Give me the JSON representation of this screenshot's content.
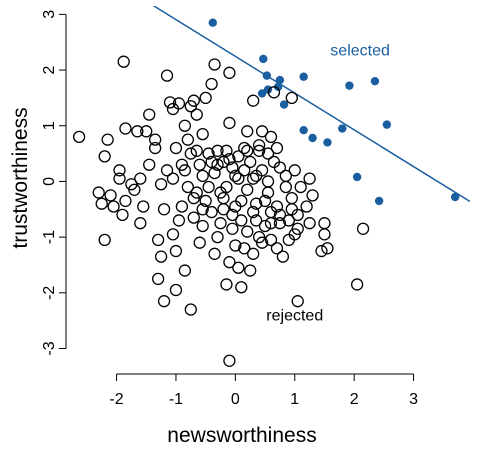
{
  "chart_data": {
    "type": "scatter",
    "title": "",
    "xlabel": "newsworthiness",
    "ylabel": "trustworthiness",
    "xlim": [
      -2.75,
      3.95
    ],
    "ylim": [
      -3.35,
      3.15
    ],
    "xticks": [
      -2,
      -1,
      0,
      1,
      2,
      3
    ],
    "yticks": [
      -3,
      -2,
      -1,
      0,
      1,
      2,
      3
    ],
    "grid": false,
    "line": {
      "x1": -2.75,
      "y1": 4.06,
      "x2": 3.95,
      "y2": -0.36,
      "color": "#1a5fa0"
    },
    "annotations": [
      {
        "text": "selected",
        "x": 2.1,
        "y": 2.26,
        "color": "#1a5fa0"
      },
      {
        "text": "rejected",
        "x": 1.0,
        "y": -2.5,
        "color": "#000000"
      }
    ],
    "series": [
      {
        "name": "selected",
        "marker": "filled",
        "color": "#1a5fa0",
        "points": [
          [
            -0.38,
            2.85
          ],
          [
            0.47,
            2.2
          ],
          [
            0.53,
            1.9
          ],
          [
            0.75,
            1.82
          ],
          [
            1.15,
            1.88
          ],
          [
            0.45,
            1.58
          ],
          [
            0.55,
            1.65
          ],
          [
            0.72,
            1.7
          ],
          [
            0.82,
            1.38
          ],
          [
            1.92,
            1.72
          ],
          [
            2.35,
            1.8
          ],
          [
            1.15,
            0.92
          ],
          [
            1.3,
            0.78
          ],
          [
            1.55,
            0.7
          ],
          [
            1.8,
            0.95
          ],
          [
            2.55,
            1.02
          ],
          [
            2.05,
            0.08
          ],
          [
            2.42,
            -0.35
          ],
          [
            3.7,
            -0.28
          ]
        ]
      },
      {
        "name": "rejected",
        "marker": "open",
        "color": "#000000",
        "points": [
          [
            -2.63,
            0.8
          ],
          [
            -1.88,
            2.15
          ],
          [
            -1.45,
            1.2
          ],
          [
            -1.15,
            1.9
          ],
          [
            -0.95,
            1.4
          ],
          [
            -0.7,
            1.45
          ],
          [
            -0.35,
            2.1
          ],
          [
            -0.1,
            1.95
          ],
          [
            -0.4,
            1.75
          ],
          [
            -0.65,
            1.2
          ],
          [
            -0.85,
            1.0
          ],
          [
            -1.05,
            1.3
          ],
          [
            -1.35,
            0.75
          ],
          [
            -1.65,
            0.9
          ],
          [
            -1.85,
            0.95
          ],
          [
            -2.15,
            0.75
          ],
          [
            -2.2,
            0.45
          ],
          [
            -1.95,
            0.2
          ],
          [
            -2.3,
            -0.2
          ],
          [
            -2.25,
            -0.4
          ],
          [
            -2.1,
            -0.25
          ],
          [
            -1.85,
            -0.35
          ],
          [
            -1.7,
            -0.15
          ],
          [
            -1.55,
            -0.45
          ],
          [
            -1.9,
            -0.6
          ],
          [
            -2.2,
            -1.05
          ],
          [
            -1.3,
            -1.05
          ],
          [
            -1.25,
            -1.35
          ],
          [
            -1.05,
            -0.95
          ],
          [
            -1.0,
            -1.25
          ],
          [
            -1.3,
            -1.75
          ],
          [
            -1.2,
            -2.15
          ],
          [
            -1.0,
            -1.95
          ],
          [
            -0.85,
            -1.6
          ],
          [
            -0.75,
            -2.3
          ],
          [
            -0.9,
            -0.45
          ],
          [
            -0.8,
            -0.1
          ],
          [
            -0.6,
            0.3
          ],
          [
            -0.45,
            0.5
          ],
          [
            -0.3,
            0.55
          ],
          [
            -0.2,
            0.35
          ],
          [
            -0.1,
            0.4
          ],
          [
            0.05,
            0.45
          ],
          [
            0.15,
            0.6
          ],
          [
            0.0,
            0.1
          ],
          [
            -0.25,
            -0.2
          ],
          [
            -0.5,
            -0.35
          ],
          [
            -0.7,
            -0.65
          ],
          [
            -0.55,
            -0.8
          ],
          [
            -0.4,
            -0.55
          ],
          [
            -0.2,
            -0.5
          ],
          [
            -0.05,
            -0.6
          ],
          [
            0.1,
            -0.35
          ],
          [
            0.2,
            -0.15
          ],
          [
            0.3,
            0.05
          ],
          [
            0.45,
            0.2
          ],
          [
            0.55,
            0.5
          ],
          [
            0.7,
            0.6
          ],
          [
            0.75,
            0.25
          ],
          [
            0.85,
            -0.1
          ],
          [
            0.95,
            -0.3
          ],
          [
            1.05,
            -0.6
          ],
          [
            1.2,
            -0.45
          ],
          [
            1.05,
            -0.85
          ],
          [
            0.9,
            -0.7
          ],
          [
            0.75,
            -0.75
          ],
          [
            0.6,
            -0.55
          ],
          [
            0.5,
            -0.8
          ],
          [
            0.35,
            -0.7
          ],
          [
            0.2,
            -0.9
          ],
          [
            0.0,
            -1.15
          ],
          [
            -0.1,
            -1.45
          ],
          [
            0.05,
            -1.55
          ],
          [
            -0.15,
            -1.85
          ],
          [
            0.1,
            -1.9
          ],
          [
            0.3,
            -1.3
          ],
          [
            0.45,
            -1.1
          ],
          [
            0.7,
            -1.2
          ],
          [
            0.8,
            -1.35
          ],
          [
            1.0,
            -0.95
          ],
          [
            1.5,
            -0.75
          ],
          [
            1.5,
            -0.95
          ],
          [
            1.45,
            -1.25
          ],
          [
            1.55,
            -1.2
          ],
          [
            2.15,
            -0.85
          ],
          [
            2.05,
            -1.85
          ],
          [
            1.05,
            -2.15
          ],
          [
            -0.1,
            -3.22
          ],
          [
            0.3,
            1.45
          ],
          [
            0.65,
            1.6
          ],
          [
            0.95,
            1.5
          ],
          [
            -0.5,
            1.5
          ],
          [
            -0.75,
            1.35
          ],
          [
            -1.1,
            1.42
          ],
          [
            -0.55,
            0.85
          ],
          [
            -0.1,
            1.05
          ],
          [
            0.2,
            0.9
          ],
          [
            0.45,
            0.9
          ],
          [
            0.6,
            0.8
          ],
          [
            0.4,
            0.55
          ],
          [
            0.25,
            0.35
          ],
          [
            -0.15,
            0.55
          ],
          [
            -0.3,
            0.3
          ],
          [
            -0.55,
            0.1
          ],
          [
            -0.75,
            0.5
          ],
          [
            -1.0,
            0.6
          ],
          [
            -1.15,
            0.2
          ],
          [
            -1.25,
            -0.05
          ],
          [
            -1.45,
            0.3
          ],
          [
            -1.6,
            0.05
          ],
          [
            -1.75,
            -0.05
          ],
          [
            -1.95,
            0.05
          ],
          [
            -2.05,
            -0.45
          ],
          [
            -1.6,
            -0.75
          ],
          [
            -1.2,
            -0.5
          ],
          [
            -0.9,
            0.3
          ],
          [
            -0.65,
            -0.2
          ],
          [
            -0.35,
            0.15
          ],
          [
            -0.15,
            -0.1
          ],
          [
            0.05,
            0.05
          ],
          [
            0.35,
            -0.4
          ],
          [
            0.55,
            -0.2
          ],
          [
            0.85,
            0.1
          ],
          [
            1.0,
            0.2
          ],
          [
            1.25,
            0.05
          ],
          [
            1.3,
            -0.25
          ],
          [
            0.7,
            -0.45
          ],
          [
            0.4,
            -1.0
          ],
          [
            0.15,
            -1.2
          ],
          [
            -0.05,
            -0.85
          ],
          [
            -0.3,
            -1.0
          ],
          [
            -0.6,
            -1.1
          ],
          [
            -0.35,
            -1.3
          ],
          [
            0.25,
            -1.6
          ],
          [
            0.6,
            -1.05
          ],
          [
            0.9,
            -1.05
          ],
          [
            1.25,
            -0.75
          ],
          [
            0.55,
            0.0
          ],
          [
            -0.45,
            -0.1
          ],
          [
            -0.8,
            0.75
          ],
          [
            -1.35,
            0.6
          ],
          [
            -1.5,
            0.9
          ],
          [
            0.15,
            0.2
          ],
          [
            0.65,
            0.35
          ],
          [
            -0.2,
            -0.3
          ],
          [
            0.4,
            0.65
          ],
          [
            -0.95,
            -0.7
          ],
          [
            0.0,
            -0.45
          ],
          [
            0.5,
            -0.35
          ],
          [
            -0.65,
            0.55
          ],
          [
            0.1,
            -0.7
          ],
          [
            -0.4,
            0.35
          ],
          [
            1.1,
            -0.1
          ],
          [
            0.75,
            -0.6
          ],
          [
            -0.25,
            -0.75
          ],
          [
            0.35,
            0.1
          ],
          [
            -1.05,
            0.05
          ],
          [
            -0.55,
            -0.5
          ],
          [
            0.2,
            0.55
          ],
          [
            0.95,
            -0.5
          ],
          [
            -0.85,
            0.2
          ],
          [
            0.6,
            -0.75
          ],
          [
            -0.05,
            0.25
          ],
          [
            0.3,
            -0.55
          ],
          [
            -0.7,
            -0.3
          ]
        ]
      }
    ]
  }
}
